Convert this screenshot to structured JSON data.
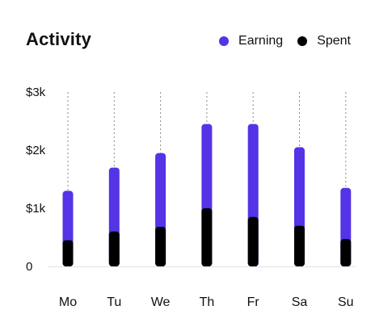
{
  "header": {
    "title": "Activity"
  },
  "legend": {
    "items": [
      {
        "label": "Earning",
        "color": "#5533e6"
      },
      {
        "label": "Spent",
        "color": "#000000"
      }
    ]
  },
  "chart_data": {
    "type": "bar",
    "title": "Activity",
    "xlabel": "",
    "ylabel": "",
    "categories": [
      "Mo",
      "Tu",
      "We",
      "Th",
      "Fr",
      "Sa",
      "Su"
    ],
    "series": [
      {
        "name": "Earning",
        "color": "#5533e6",
        "values": [
          1.3,
          1.7,
          1.95,
          2.45,
          2.45,
          2.05,
          1.35
        ]
      },
      {
        "name": "Spent",
        "color": "#000000",
        "values": [
          0.45,
          0.6,
          0.68,
          1.0,
          0.85,
          0.7,
          0.47
        ]
      }
    ],
    "stacked": "overlay",
    "ylim": [
      0,
      3
    ],
    "yticks": [
      {
        "value": 0,
        "label": "0"
      },
      {
        "value": 1,
        "label": "$1k"
      },
      {
        "value": 2,
        "label": "$2k"
      },
      {
        "value": 3,
        "label": "$3k"
      }
    ],
    "grid": "vertical-dotted-per-category",
    "legend_position": "top-right"
  }
}
